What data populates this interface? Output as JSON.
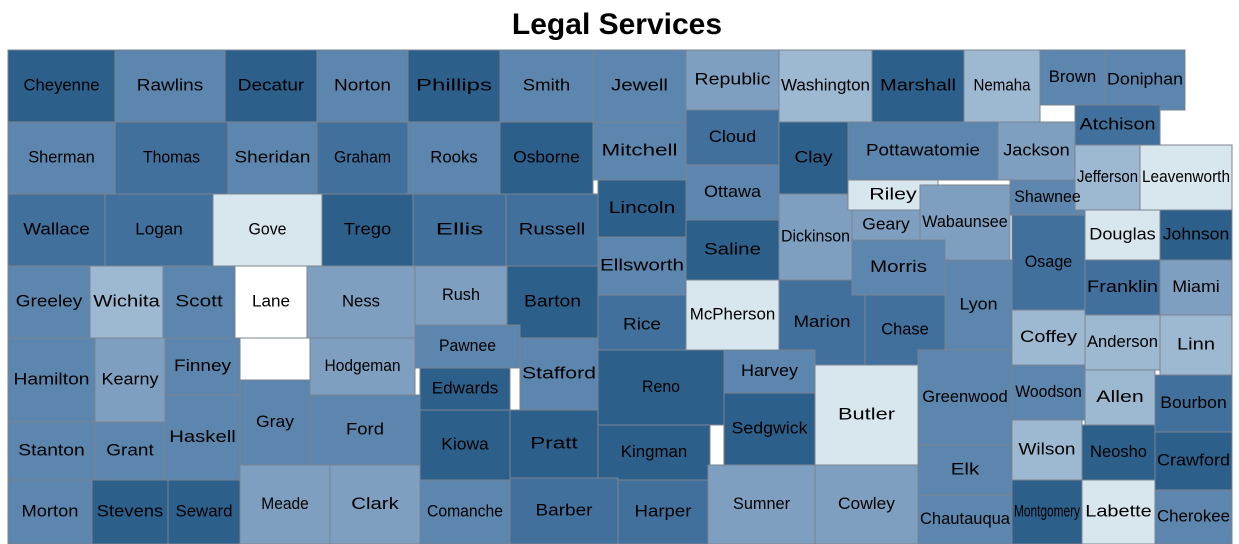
{
  "title": "Legal Services",
  "counties": [
    {
      "name": "Cheyenne",
      "color": "#2d5f8b"
    },
    {
      "name": "Rawlins",
      "color": "#5d86ae"
    },
    {
      "name": "Decatur",
      "color": "#2d5f8b"
    },
    {
      "name": "Norton",
      "color": "#5d86ae"
    },
    {
      "name": "Phillips",
      "color": "#2d5f8b"
    },
    {
      "name": "Smith",
      "color": "#5d86ae"
    },
    {
      "name": "Jewell",
      "color": "#5d86ae"
    },
    {
      "name": "Republic",
      "color": "#7f9fc0"
    },
    {
      "name": "Washington",
      "color": "#9db8d1"
    },
    {
      "name": "Marshall",
      "color": "#2d5f8b"
    },
    {
      "name": "Nemaha",
      "color": "#9db8d1"
    },
    {
      "name": "Brown",
      "color": "#5d86ae"
    },
    {
      "name": "Doniphan",
      "color": "#5d86ae"
    },
    {
      "name": "Sherman",
      "color": "#5d86ae"
    },
    {
      "name": "Thomas",
      "color": "#41709c"
    },
    {
      "name": "Sheridan",
      "color": "#5d86ae"
    },
    {
      "name": "Graham",
      "color": "#41709c"
    },
    {
      "name": "Rooks",
      "color": "#5d86ae"
    },
    {
      "name": "Osborne",
      "color": "#2d5f8b"
    },
    {
      "name": "Mitchell",
      "color": "#5d86ae"
    },
    {
      "name": "Cloud",
      "color": "#41709c"
    },
    {
      "name": "Clay",
      "color": "#2d5f8b"
    },
    {
      "name": "Pottawatomie",
      "color": "#5d86ae"
    },
    {
      "name": "Jackson",
      "color": "#7f9fc0"
    },
    {
      "name": "Atchison",
      "color": "#41709c"
    },
    {
      "name": "Wallace",
      "color": "#41709c"
    },
    {
      "name": "Logan",
      "color": "#41709c"
    },
    {
      "name": "Gove",
      "color": "#d8e6ee"
    },
    {
      "name": "Trego",
      "color": "#2d5f8b"
    },
    {
      "name": "Ellis",
      "color": "#41709c"
    },
    {
      "name": "Russell",
      "color": "#41709c"
    },
    {
      "name": "Lincoln",
      "color": "#2d5f8b"
    },
    {
      "name": "Ottawa",
      "color": "#5d86ae"
    },
    {
      "name": "Dickinson",
      "color": "#7f9fc0"
    },
    {
      "name": "Riley",
      "color": "#d8e6ee"
    },
    {
      "name": "Geary",
      "color": "#7f9fc0"
    },
    {
      "name": "Wabaunsee",
      "color": "#7f9fc0"
    },
    {
      "name": "Shawnee",
      "color": "#5d86ae"
    },
    {
      "name": "Jefferson",
      "color": "#9db8d1"
    },
    {
      "name": "Leavenworth",
      "color": "#d8e6ee"
    },
    {
      "name": "Douglas",
      "color": "#d8e6ee"
    },
    {
      "name": "Johnson",
      "color": "#2d5f8b"
    },
    {
      "name": "Greeley",
      "color": "#5d86ae"
    },
    {
      "name": "Wichita",
      "color": "#9db8d1"
    },
    {
      "name": "Scott",
      "color": "#5d86ae"
    },
    {
      "name": "Lane",
      "color": "#ffffff"
    },
    {
      "name": "Ness",
      "color": "#7f9fc0"
    },
    {
      "name": "Rush",
      "color": "#7f9fc0"
    },
    {
      "name": "Barton",
      "color": "#2d5f8b"
    },
    {
      "name": "Ellsworth",
      "color": "#5d86ae"
    },
    {
      "name": "Saline",
      "color": "#2d5f8b"
    },
    {
      "name": "Marion",
      "color": "#41709c"
    },
    {
      "name": "Morris",
      "color": "#5d86ae"
    },
    {
      "name": "Chase",
      "color": "#41709c"
    },
    {
      "name": "Lyon",
      "color": "#5d86ae"
    },
    {
      "name": "Osage",
      "color": "#41709c"
    },
    {
      "name": "Franklin",
      "color": "#41709c"
    },
    {
      "name": "Miami",
      "color": "#7f9fc0"
    },
    {
      "name": "Rice",
      "color": "#41709c"
    },
    {
      "name": "McPherson",
      "color": "#d8e6ee"
    },
    {
      "name": "Hamilton",
      "color": "#5d86ae"
    },
    {
      "name": "Kearny",
      "color": "#7f9fc0"
    },
    {
      "name": "Finney",
      "color": "#5d86ae"
    },
    {
      "name": "Hodgeman",
      "color": "#7f9fc0"
    },
    {
      "name": "Pawnee",
      "color": "#5d86ae"
    },
    {
      "name": "Stafford",
      "color": "#5d86ae"
    },
    {
      "name": "Reno",
      "color": "#2d5f8b"
    },
    {
      "name": "Harvey",
      "color": "#5d86ae"
    },
    {
      "name": "Butler",
      "color": "#d8e6ee"
    },
    {
      "name": "Greenwood",
      "color": "#5d86ae"
    },
    {
      "name": "Coffey",
      "color": "#9db8d1"
    },
    {
      "name": "Anderson",
      "color": "#9db8d1"
    },
    {
      "name": "Linn",
      "color": "#9db8d1"
    },
    {
      "name": "Woodson",
      "color": "#5d86ae"
    },
    {
      "name": "Allen",
      "color": "#9db8d1"
    },
    {
      "name": "Bourbon",
      "color": "#41709c"
    },
    {
      "name": "Gray",
      "color": "#5d86ae"
    },
    {
      "name": "Ford",
      "color": "#5d86ae"
    },
    {
      "name": "Edwards",
      "color": "#2d5f8b"
    },
    {
      "name": "Sedgwick",
      "color": "#2d5f8b"
    },
    {
      "name": "Stanton",
      "color": "#5d86ae"
    },
    {
      "name": "Grant",
      "color": "#5d86ae"
    },
    {
      "name": "Haskell",
      "color": "#5d86ae"
    },
    {
      "name": "Kiowa",
      "color": "#2d5f8b"
    },
    {
      "name": "Pratt",
      "color": "#2d5f8b"
    },
    {
      "name": "Kingman",
      "color": "#2d5f8b"
    },
    {
      "name": "Wilson",
      "color": "#9db8d1"
    },
    {
      "name": "Neosho",
      "color": "#2d5f8b"
    },
    {
      "name": "Crawford",
      "color": "#2d5f8b"
    },
    {
      "name": "Elk",
      "color": "#5d86ae"
    },
    {
      "name": "Morton",
      "color": "#5d86ae"
    },
    {
      "name": "Stevens",
      "color": "#2d5f8b"
    },
    {
      "name": "Seward",
      "color": "#2d5f8b"
    },
    {
      "name": "Meade",
      "color": "#7f9fc0"
    },
    {
      "name": "Clark",
      "color": "#7f9fc0"
    },
    {
      "name": "Comanche",
      "color": "#5d86ae"
    },
    {
      "name": "Barber",
      "color": "#41709c"
    },
    {
      "name": "Harper",
      "color": "#41709c"
    },
    {
      "name": "Sumner",
      "color": "#7f9fc0"
    },
    {
      "name": "Cowley",
      "color": "#7f9fc0"
    },
    {
      "name": "Chautauqua",
      "color": "#5d86ae"
    },
    {
      "name": "Montgomery",
      "color": "#2d5f8b"
    },
    {
      "name": "Labette",
      "color": "#d8e6ee"
    },
    {
      "name": "Cherokee",
      "color": "#5d86ae"
    }
  ]
}
